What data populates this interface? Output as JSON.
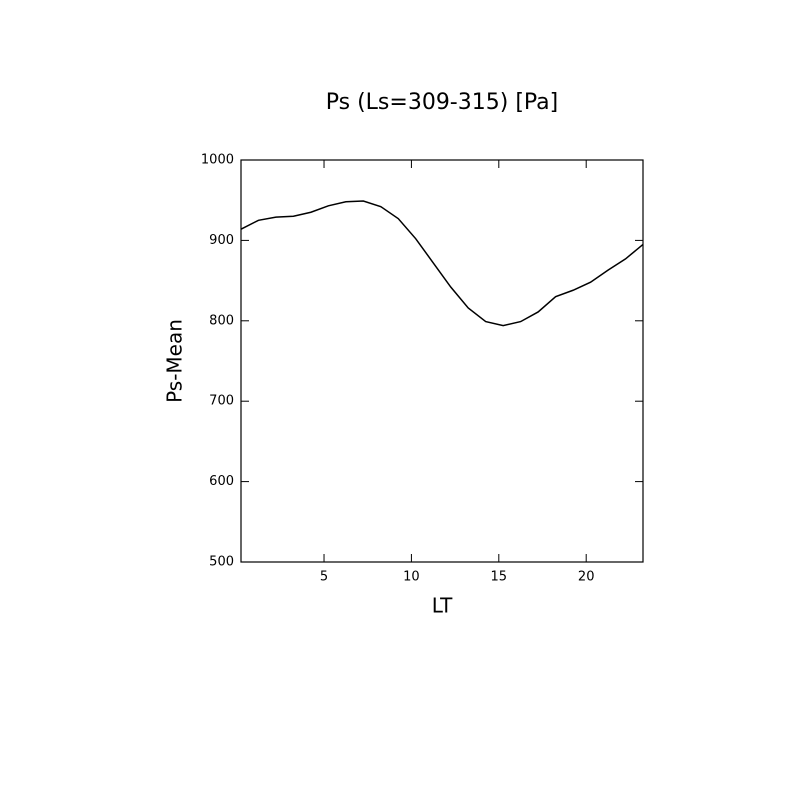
{
  "chart_data": {
    "type": "line",
    "title": "Ps (Ls=309-315) [Pa]",
    "xlabel": "LT",
    "ylabel": "Ps-Mean",
    "x": [
      0.25,
      1.25,
      2.25,
      3.25,
      4.25,
      5.25,
      6.25,
      7.25,
      8.25,
      9.25,
      10.25,
      11.25,
      12.25,
      13.25,
      14.25,
      15.25,
      16.25,
      17.25,
      18.25,
      19.25,
      20.25,
      21.25,
      22.25,
      23.25
    ],
    "series": [
      {
        "color": "#000000",
        "values": [
          914,
          925,
          929,
          930,
          935,
          943,
          948,
          949,
          942,
          927,
          902,
          872,
          842,
          816,
          799,
          794,
          799,
          811,
          830,
          838,
          848,
          863,
          877,
          895
        ]
      }
    ],
    "xlim": [
      0.25,
      23.25
    ],
    "xticks": [
      5,
      10,
      15,
      20
    ],
    "ylim": [
      500,
      1000
    ],
    "yticks": [
      500,
      600,
      700,
      800,
      900,
      1000
    ]
  }
}
